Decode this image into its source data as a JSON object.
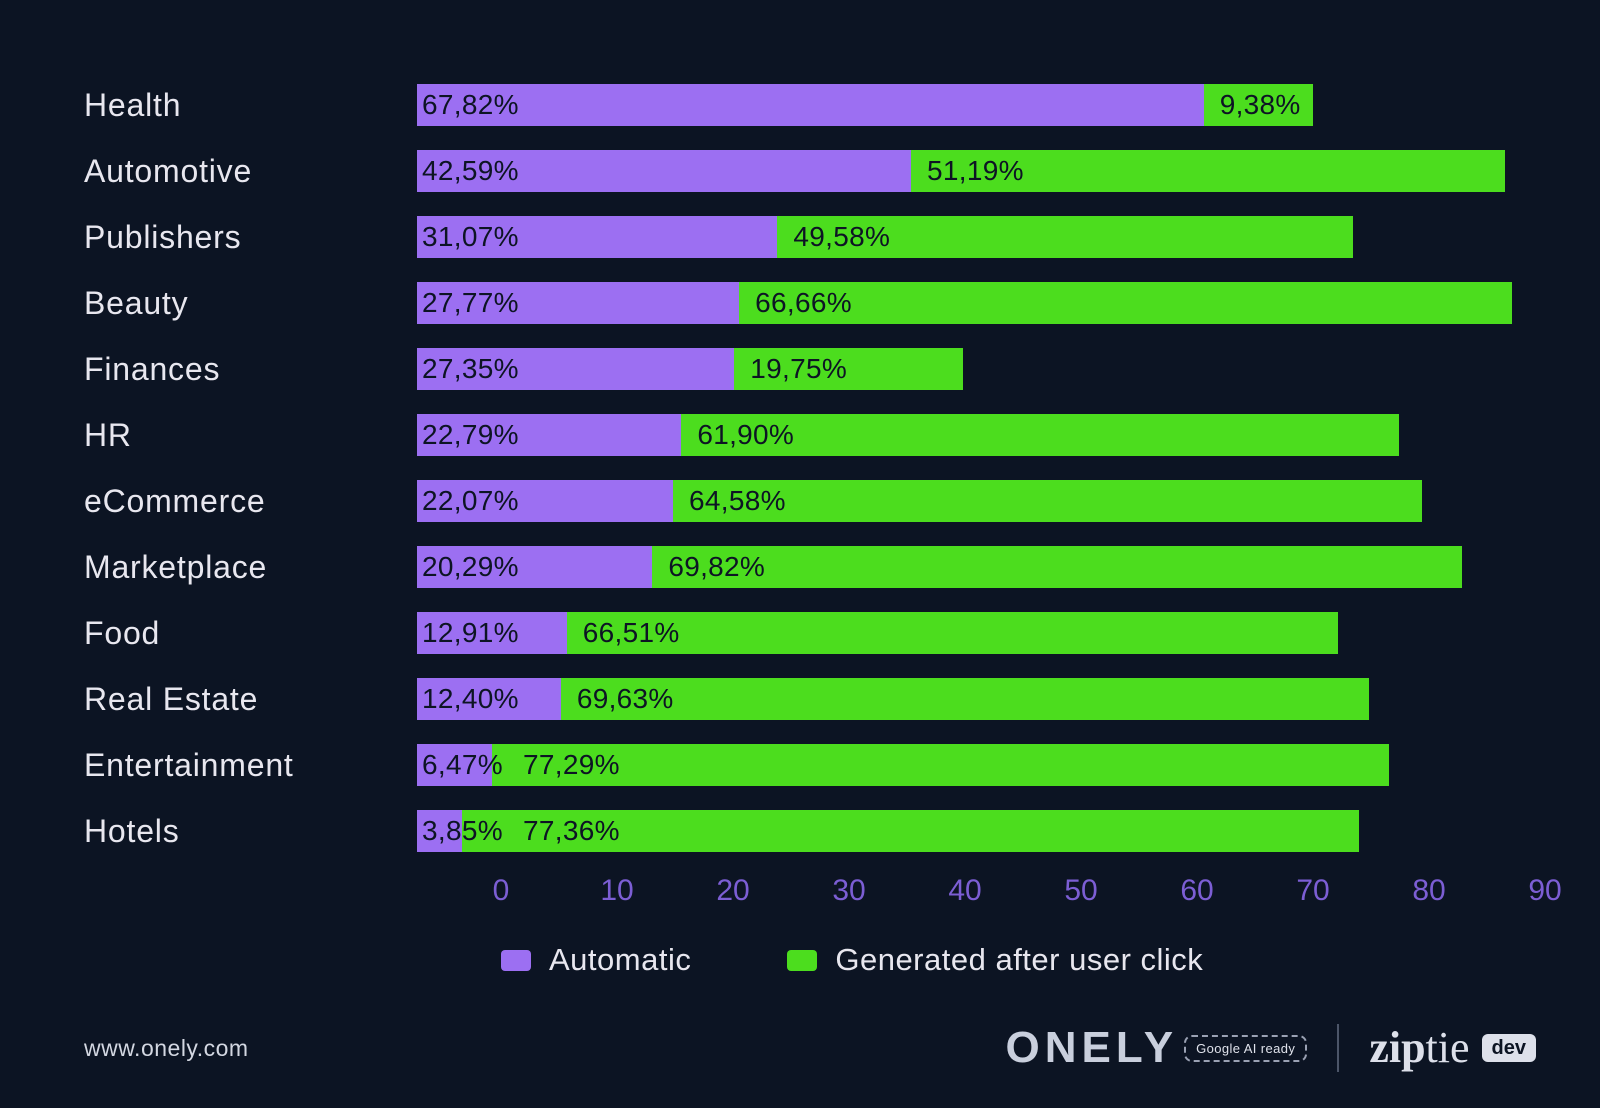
{
  "page": {
    "background": "#0c1423"
  },
  "chart_data": {
    "type": "bar",
    "orientation": "horizontal",
    "stacked": true,
    "title": "",
    "xlabel": "",
    "ylabel": "",
    "grid": false,
    "legend_position": "bottom",
    "xlim": [
      0,
      95
    ],
    "categories": [
      "Health",
      "Automotive",
      "Publishers",
      "Beauty",
      "Finances",
      "HR",
      "eCommerce",
      "Marketplace",
      "Food",
      "Real Estate",
      "Entertainment",
      "Hotels"
    ],
    "series": [
      {
        "name": "Automatic",
        "color": "#9c6ff2",
        "values": [
          67.82,
          42.59,
          31.07,
          27.77,
          27.35,
          22.79,
          22.07,
          20.29,
          12.91,
          12.4,
          6.47,
          3.85
        ],
        "labels": [
          "67,82%",
          "42,59%",
          "31,07%",
          "27,77%",
          "27,35%",
          "22,79%",
          "22,07%",
          "20,29%",
          "12,91%",
          "12,40%",
          "6,47%",
          "3,85%"
        ]
      },
      {
        "name": "Generated after user click",
        "color": "#4cdd1e",
        "values": [
          9.38,
          51.19,
          49.58,
          66.66,
          19.75,
          61.9,
          64.58,
          69.82,
          66.51,
          69.63,
          77.29,
          77.36
        ],
        "labels": [
          "9,38%",
          "51,19%",
          "49,58%",
          "66,66%",
          "19,75%",
          "61,90%",
          "64,58%",
          "69,82%",
          "66,51%",
          "69,63%",
          "77,29%",
          "77,36%"
        ]
      }
    ],
    "xticks": [
      0,
      10,
      20,
      30,
      40,
      50,
      60,
      70,
      80,
      90
    ],
    "xtick_labels": [
      "0",
      "10",
      "20",
      "30",
      "40",
      "50",
      "60",
      "70",
      "80",
      "90"
    ]
  },
  "footer": {
    "website": "www.onely.com",
    "onely_wordmark": "ONELY",
    "google_ai_badge": "Google AI ready",
    "ziptie_zip": "zip",
    "ziptie_tie": "tie",
    "ziptie_dev_badge": "dev"
  }
}
